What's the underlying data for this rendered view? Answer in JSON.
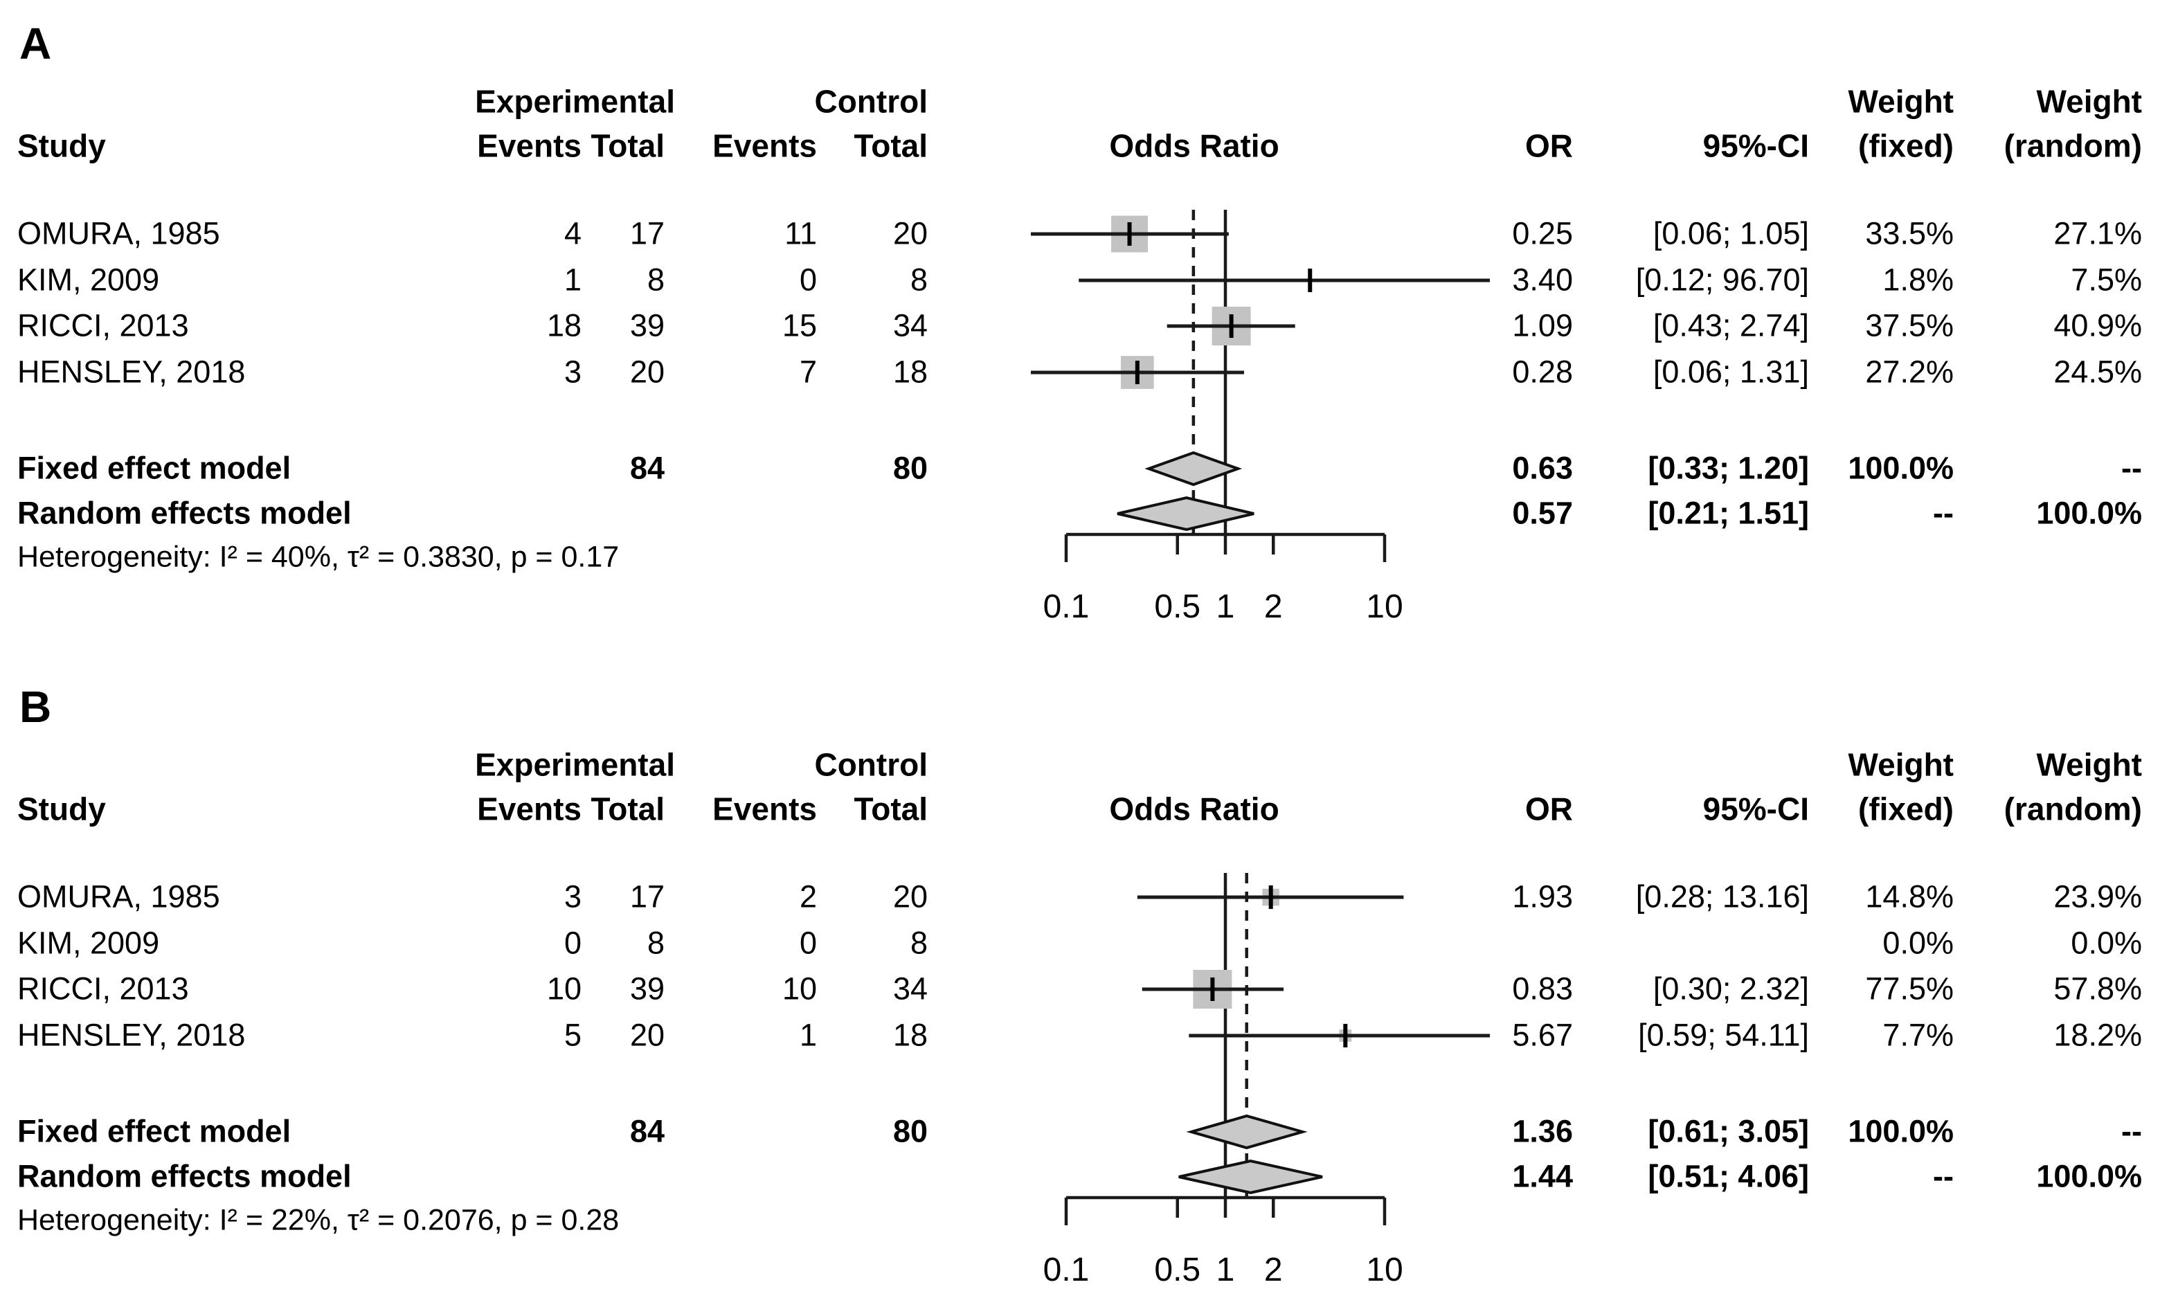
{
  "figure": {
    "panel_a_label": "A",
    "panel_b_label": "B"
  },
  "colors": {
    "square_fill": "#c3c3c3",
    "diamond_fill": "#c9c9c9",
    "line": "#1a1a1a",
    "text": "#000000"
  },
  "panels": [
    {
      "label": "A",
      "headers": {
        "group_experimental": "Experimental",
        "group_control": "Control",
        "weight1": "Weight",
        "weight2": "Weight",
        "study": "Study",
        "events1": "Events",
        "total1": "Total",
        "events2": "Events",
        "total2": "Total",
        "odds_ratio": "Odds Ratio",
        "or": "OR",
        "ci": "95%-CI",
        "fixed": "(fixed)",
        "random": "(random)"
      },
      "studies": [
        {
          "name": "OMURA, 1985",
          "events_exp": "4",
          "total_exp": "17",
          "events_ctrl": "11",
          "total_ctrl": "20",
          "or_text": "0.25",
          "ci_text": "[0.06; 1.05]",
          "weight_fixed": "33.5%",
          "weight_random": "27.1%"
        },
        {
          "name": "KIM, 2009",
          "events_exp": "1",
          "total_exp": "8",
          "events_ctrl": "0",
          "total_ctrl": "8",
          "or_text": "3.40",
          "ci_text": "[0.12; 96.70]",
          "weight_fixed": "1.8%",
          "weight_random": "7.5%"
        },
        {
          "name": "RICCI, 2013",
          "events_exp": "18",
          "total_exp": "39",
          "events_ctrl": "15",
          "total_ctrl": "34",
          "or_text": "1.09",
          "ci_text": "[0.43; 2.74]",
          "weight_fixed": "37.5%",
          "weight_random": "40.9%"
        },
        {
          "name": "HENSLEY, 2018",
          "events_exp": "3",
          "total_exp": "20",
          "events_ctrl": "7",
          "total_ctrl": "18",
          "or_text": "0.28",
          "ci_text": "[0.06; 1.31]",
          "weight_fixed": "27.2%",
          "weight_random": "24.5%"
        }
      ],
      "fixed": {
        "label": "Fixed effect model",
        "total_exp": "84",
        "total_ctrl": "80",
        "or_text": "0.63",
        "ci_text": "[0.33; 1.20]",
        "weight_fixed": "100.0%",
        "weight_random": "--"
      },
      "random": {
        "label": "Random effects model",
        "or_text": "0.57",
        "ci_text": "[0.21; 1.51]",
        "weight_fixed": "--",
        "weight_random": "100.0%"
      },
      "heterogeneity": "Heterogeneity: I² = 40%, τ² = 0.3830, p = 0.17"
    },
    {
      "label": "B",
      "headers": {
        "group_experimental": "Experimental",
        "group_control": "Control",
        "weight1": "Weight",
        "weight2": "Weight",
        "study": "Study",
        "events1": "Events",
        "total1": "Total",
        "events2": "Events",
        "total2": "Total",
        "odds_ratio": "Odds Ratio",
        "or": "OR",
        "ci": "95%-CI",
        "fixed": "(fixed)",
        "random": "(random)"
      },
      "studies": [
        {
          "name": "OMURA, 1985",
          "events_exp": "3",
          "total_exp": "17",
          "events_ctrl": "2",
          "total_ctrl": "20",
          "or_text": "1.93",
          "ci_text": "[0.28; 13.16]",
          "weight_fixed": "14.8%",
          "weight_random": "23.9%"
        },
        {
          "name": "KIM, 2009",
          "events_exp": "0",
          "total_exp": "8",
          "events_ctrl": "0",
          "total_ctrl": "8",
          "or_text": "",
          "ci_text": "",
          "weight_fixed": "0.0%",
          "weight_random": "0.0%"
        },
        {
          "name": "RICCI, 2013",
          "events_exp": "10",
          "total_exp": "39",
          "events_ctrl": "10",
          "total_ctrl": "34",
          "or_text": "0.83",
          "ci_text": "[0.30; 2.32]",
          "weight_fixed": "77.5%",
          "weight_random": "57.8%"
        },
        {
          "name": "HENSLEY, 2018",
          "events_exp": "5",
          "total_exp": "20",
          "events_ctrl": "1",
          "total_ctrl": "18",
          "or_text": "5.67",
          "ci_text": "[0.59; 54.11]",
          "weight_fixed": "7.7%",
          "weight_random": "18.2%"
        }
      ],
      "fixed": {
        "label": "Fixed effect model",
        "total_exp": "84",
        "total_ctrl": "80",
        "or_text": "1.36",
        "ci_text": "[0.61; 3.05]",
        "weight_fixed": "100.0%",
        "weight_random": "--"
      },
      "random": {
        "label": "Random effects model",
        "or_text": "1.44",
        "ci_text": "[0.51; 4.06]",
        "weight_fixed": "--",
        "weight_random": "100.0%"
      },
      "heterogeneity": "Heterogeneity: I² = 22%, τ² = 0.2076, p = 0.28"
    }
  ],
  "chart_data": [
    {
      "type": "forest",
      "panel": "A",
      "effect_measure": "Odds Ratio",
      "x_scale": "log10",
      "x_ticks": [
        0.1,
        0.5,
        1,
        2,
        10
      ],
      "x_tick_labels": [
        "0.1",
        "0.5",
        "1",
        "2",
        "10"
      ],
      "ref_line": 1,
      "dashed_ref_line": 0.63,
      "studies": [
        {
          "study": "OMURA, 1985",
          "or": 0.25,
          "ci": [
            0.06,
            1.05
          ],
          "weight_fixed_pct": 33.5,
          "weight_random_pct": 27.1
        },
        {
          "study": "KIM, 2009",
          "or": 3.4,
          "ci": [
            0.12,
            96.7
          ],
          "weight_fixed_pct": 1.8,
          "weight_random_pct": 7.5
        },
        {
          "study": "RICCI, 2013",
          "or": 1.09,
          "ci": [
            0.43,
            2.74
          ],
          "weight_fixed_pct": 37.5,
          "weight_random_pct": 40.9
        },
        {
          "study": "HENSLEY, 2018",
          "or": 0.28,
          "ci": [
            0.06,
            1.31
          ],
          "weight_fixed_pct": 27.2,
          "weight_random_pct": 24.5
        }
      ],
      "fixed_effect": {
        "or": 0.63,
        "ci": [
          0.33,
          1.2
        ]
      },
      "random_effects": {
        "or": 0.57,
        "ci": [
          0.21,
          1.51
        ]
      },
      "heterogeneity": {
        "I2": "40%",
        "tau2": 0.383,
        "p": 0.17
      }
    },
    {
      "type": "forest",
      "panel": "B",
      "effect_measure": "Odds Ratio",
      "x_scale": "log10",
      "x_ticks": [
        0.1,
        0.5,
        1,
        2,
        10
      ],
      "x_tick_labels": [
        "0.1",
        "0.5",
        "1",
        "2",
        "10"
      ],
      "ref_line": 1,
      "dashed_ref_line": 1.36,
      "studies": [
        {
          "study": "OMURA, 1985",
          "or": 1.93,
          "ci": [
            0.28,
            13.16
          ],
          "weight_fixed_pct": 14.8,
          "weight_random_pct": 23.9
        },
        {
          "study": "KIM, 2009",
          "or": null,
          "ci": null,
          "weight_fixed_pct": 0.0,
          "weight_random_pct": 0.0
        },
        {
          "study": "RICCI, 2013",
          "or": 0.83,
          "ci": [
            0.3,
            2.32
          ],
          "weight_fixed_pct": 77.5,
          "weight_random_pct": 57.8
        },
        {
          "study": "HENSLEY, 2018",
          "or": 5.67,
          "ci": [
            0.59,
            54.11
          ],
          "weight_fixed_pct": 7.7,
          "weight_random_pct": 18.2
        }
      ],
      "fixed_effect": {
        "or": 1.36,
        "ci": [
          0.61,
          3.05
        ]
      },
      "random_effects": {
        "or": 1.44,
        "ci": [
          0.51,
          4.06
        ]
      },
      "heterogeneity": {
        "I2": "22%",
        "tau2": 0.2076,
        "p": 0.28
      }
    }
  ]
}
